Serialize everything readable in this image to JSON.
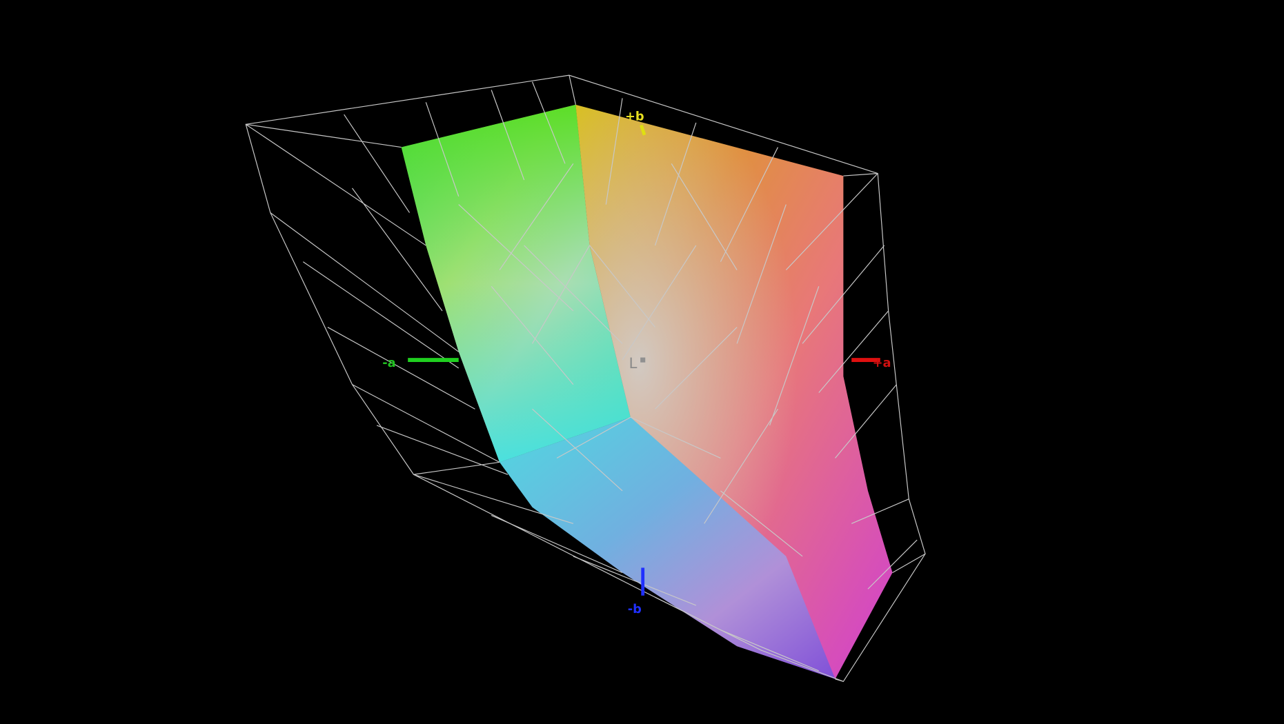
{
  "axes": {
    "plus_b": "+b",
    "minus_a": "-a",
    "plus_a": "+a",
    "minus_b": "-b",
    "lightness": "L"
  }
}
